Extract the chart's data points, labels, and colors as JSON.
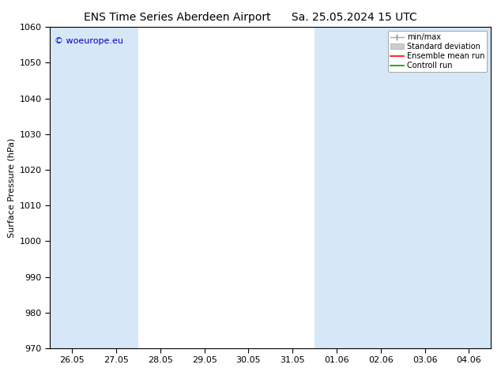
{
  "title_left": "ENS Time Series Aberdeen Airport",
  "title_right": "Sa. 25.05.2024 15 UTC",
  "ylabel": "Surface Pressure (hPa)",
  "ylim": [
    970,
    1060
  ],
  "yticks": [
    970,
    980,
    990,
    1010,
    1020,
    1030,
    1040,
    1050,
    1060
  ],
  "yticks_labeled": [
    970,
    980,
    990,
    1000,
    1010,
    1020,
    1030,
    1040,
    1050,
    1060
  ],
  "background_color": "#ffffff",
  "plot_bg_color": "#ffffff",
  "shaded_band_color": "#d6e8f7",
  "watermark_text": "© woeurope.eu",
  "watermark_color": "#0000cc",
  "legend_entries": [
    "min/max",
    "Standard deviation",
    "Ensemble mean run",
    "Controll run"
  ],
  "title_fontsize": 10,
  "axis_fontsize": 8,
  "tick_fontsize": 8,
  "xtick_labels": [
    "26.05",
    "27.05",
    "28.05",
    "29.05",
    "30.05",
    "31.05",
    "01.06",
    "02.06",
    "03.06",
    "04.06"
  ],
  "shaded_x_indices": [
    0,
    1,
    6,
    7,
    8,
    9
  ]
}
